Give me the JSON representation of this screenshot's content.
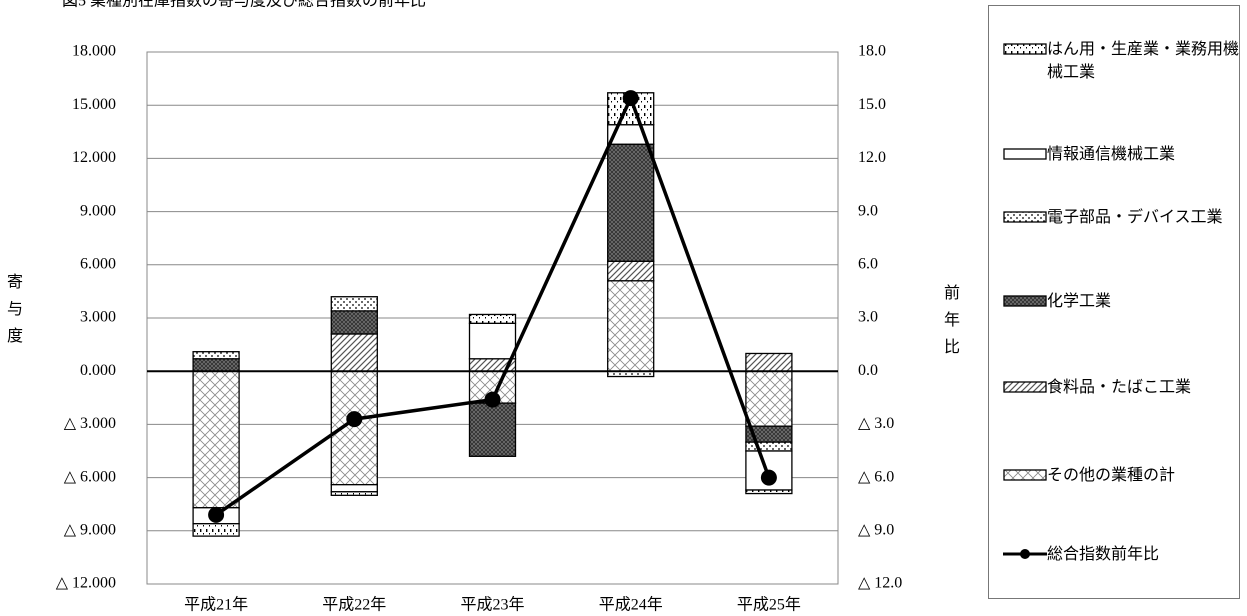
{
  "chart_data": {
    "type": "bar",
    "title": "図5 業種別在庫指数の寄与度及び総合指数の前年比",
    "ylabel": "寄与度",
    "y2label": "前年比",
    "categories": [
      "平成21年",
      "平成22年",
      "平成23年",
      "平成24年",
      "平成25年"
    ],
    "ylim": [
      -12,
      18
    ],
    "yticks": [
      {
        "value": -12,
        "label": "△ 12.000"
      },
      {
        "value": -9,
        "label": "△ 9.000"
      },
      {
        "value": -6,
        "label": "△ 6.000"
      },
      {
        "value": -3,
        "label": "△ 3.000"
      },
      {
        "value": 0,
        "label": "0.000"
      },
      {
        "value": 3,
        "label": "3.000"
      },
      {
        "value": 6,
        "label": "6.000"
      },
      {
        "value": 9,
        "label": "9.000"
      },
      {
        "value": 12,
        "label": "12.000"
      },
      {
        "value": 15,
        "label": "15.000"
      },
      {
        "value": 18,
        "label": "18.000"
      }
    ],
    "y2lim": [
      -12,
      18
    ],
    "y2ticks": [
      {
        "value": -12,
        "label": "△ 12.0"
      },
      {
        "value": -9,
        "label": "△ 9.0"
      },
      {
        "value": -6,
        "label": "△ 6.0"
      },
      {
        "value": -3,
        "label": "△ 3.0"
      },
      {
        "value": 0,
        "label": "0.0"
      },
      {
        "value": 3,
        "label": "3.0"
      },
      {
        "value": 6,
        "label": "6.0"
      },
      {
        "value": 9,
        "label": "9.0"
      },
      {
        "value": 12,
        "label": "12.0"
      },
      {
        "value": 15,
        "label": "15.0"
      },
      {
        "value": 18,
        "label": "18.0"
      }
    ],
    "grid": true,
    "legend": "right",
    "series": [
      {
        "name": "はん用・生産業・業務用機械工業",
        "pattern": "vdots",
        "color": "#000000",
        "values": [
          -0.7,
          -0.2,
          0.5,
          1.8,
          -0.2
        ]
      },
      {
        "name": "情報通信機械工業",
        "pattern": "none",
        "color": "#000000",
        "values": [
          -0.9,
          -0.4,
          2.0,
          1.1,
          -2.2
        ]
      },
      {
        "name": "電子部品・デバイス工業",
        "pattern": "dots",
        "color": "#000000",
        "values": [
          0.4,
          0.8,
          0,
          -0.3,
          -0.5
        ]
      },
      {
        "name": "化学工業",
        "pattern": "dark",
        "color": "#000000",
        "values": [
          0.7,
          1.3,
          -3.0,
          6.6,
          -0.9
        ]
      },
      {
        "name": "食料品・たばこ工業",
        "pattern": "diag",
        "color": "#000000",
        "values": [
          0,
          2.1,
          0.7,
          1.1,
          1.0
        ]
      },
      {
        "name": "その他の業種の計",
        "pattern": "cross",
        "color": "#000000",
        "values": [
          -7.7,
          -6.4,
          -1.8,
          5.1,
          -3.1
        ]
      },
      {
        "name": "総合指数前年比",
        "type": "line",
        "axis": "y2",
        "color": "#000000",
        "values": [
          -8.1,
          -2.7,
          -1.6,
          15.4,
          -6.0
        ]
      }
    ]
  }
}
